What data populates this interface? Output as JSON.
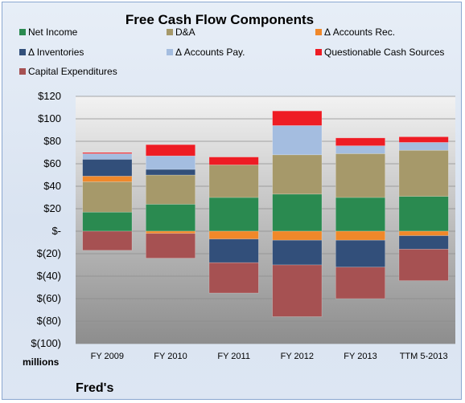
{
  "chart_data": {
    "type": "bar",
    "stacked": true,
    "title": "Free Cash Flow Components",
    "categories": [
      "FY 2009",
      "FY 2010",
      "FY 2011",
      "FY 2012",
      "FY 2013",
      "TTM 5-2013"
    ],
    "y_tick_labels": [
      "$120",
      "$100",
      "$80",
      "$60",
      "$40",
      "$20",
      "$-",
      "$(20)",
      "$(40)",
      "$(60)",
      "$(80)",
      "$(100)"
    ],
    "ylim": [
      -100,
      120
    ],
    "ylabel": "",
    "unit_label": "millions",
    "grid": true,
    "legend_position": "top",
    "series": [
      {
        "name": "Net Income",
        "color": "#2a8a50",
        "values": [
          17,
          24,
          30,
          33,
          30,
          31
        ]
      },
      {
        "name": "D&A",
        "color": "#a6996a",
        "values": [
          27,
          26,
          29,
          35,
          39,
          41
        ]
      },
      {
        "name": "Δ Accounts Rec.",
        "color": "#f0882a",
        "values": [
          5,
          -2,
          -7,
          -8,
          -8,
          -4
        ]
      },
      {
        "name": "Δ Inventories",
        "color": "#324f7a",
        "values": [
          15,
          5,
          -21,
          -22,
          -24,
          -12
        ]
      },
      {
        "name": "Δ Accounts Pay.",
        "color": "#a4bde0",
        "values": [
          5,
          12,
          0,
          26,
          7,
          7
        ]
      },
      {
        "name": "Questionable Cash Sources",
        "color": "#ee1c24",
        "values": [
          1,
          10,
          7,
          13,
          7,
          5
        ]
      },
      {
        "name": "Capital Expenditures",
        "color": "#a65152",
        "values": [
          -17,
          -22,
          -27,
          -46,
          -28,
          -28
        ]
      }
    ]
  },
  "footer": {
    "company": "Fred's"
  }
}
